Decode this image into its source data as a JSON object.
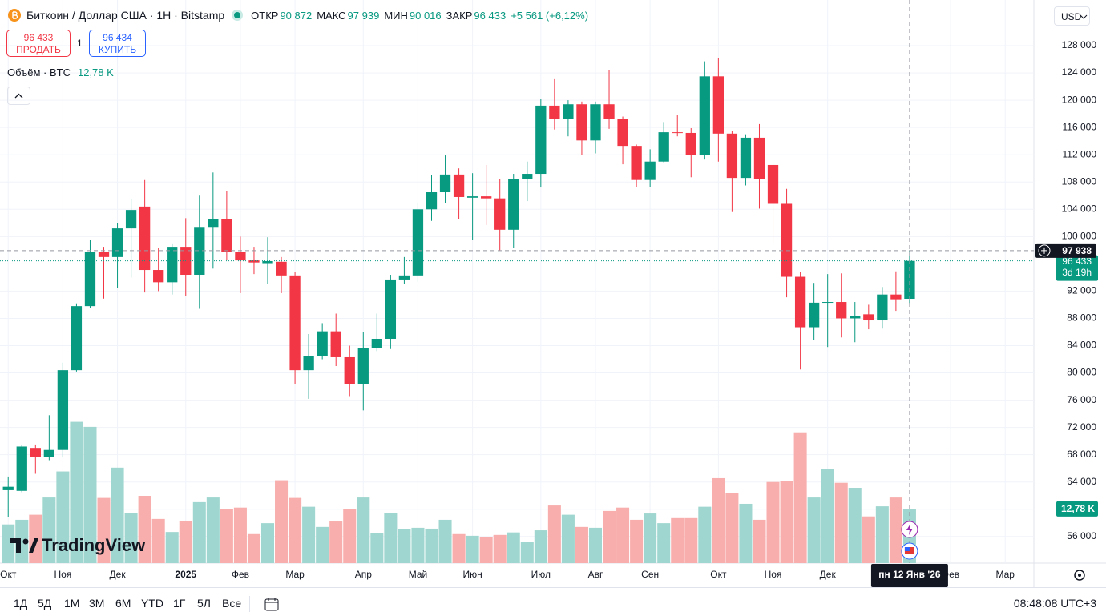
{
  "header": {
    "title": "Биткоин / Доллар США · 1Н · Bitstamp",
    "open_label": "ОТКР",
    "open": "90 872",
    "high_label": "МАКС",
    "high": "97 939",
    "low_label": "МИН",
    "low": "90 016",
    "close_label": "ЗАКР",
    "close": "96 433",
    "change": "+5 561 (+6,12%)"
  },
  "trade": {
    "sell_price": "96 433",
    "sell": "ПРОДАТЬ",
    "spread": "1",
    "buy_price": "96 434",
    "buy": "КУПИТЬ"
  },
  "currency": "USD",
  "logo": "TradingView",
  "chart_data": {
    "type": "candlestick",
    "volume_title": "Объём · BTC",
    "up_color": "#089981",
    "down_color": "#f23645",
    "volume_up_color": "#9fd6cf",
    "volume_down_color": "#f8aeac",
    "open": [
      62800,
      62700,
      69000,
      67700,
      68700,
      80400,
      89800,
      97800,
      97000,
      101200,
      104400,
      95100,
      93300,
      98500,
      94400,
      101300,
      102600,
      97700,
      96500,
      96100,
      96300,
      94300,
      80400,
      82500,
      86100,
      82300,
      78400,
      83700,
      85000,
      93700,
      94300,
      104000,
      106500,
      109100,
      105700,
      105900,
      105600,
      101000,
      108400,
      109200,
      119200,
      117300,
      119400,
      114100,
      119400,
      117300,
      113300,
      108300,
      111000,
      115300,
      115200,
      112000,
      123500,
      115100,
      108600,
      114500,
      110500,
      104800,
      94100,
      86700,
      90300,
      90400,
      88000,
      88600,
      87700,
      91500,
      90872
    ],
    "high": [
      64800,
      69500,
      69500,
      73800,
      81500,
      90200,
      99500,
      98500,
      102000,
      105500,
      108300,
      98300,
      99000,
      102700,
      106000,
      109400,
      106700,
      100000,
      98500,
      99900,
      97000,
      94800,
      85700,
      87300,
      88700,
      84000,
      86000,
      88700,
      94400,
      97000,
      104900,
      109000,
      111900,
      110000,
      109300,
      110500,
      108400,
      109200,
      111000,
      120200,
      123200,
      120000,
      119800,
      119800,
      124400,
      117600,
      113500,
      112800,
      116800,
      117800,
      115900,
      125700,
      126200,
      115500,
      115000,
      116500,
      110800,
      107000,
      94800,
      93200,
      94500,
      94600,
      90400,
      90000,
      92600,
      94900,
      97939
    ],
    "low": [
      58900,
      62500,
      65200,
      67200,
      67600,
      80200,
      89500,
      90900,
      92400,
      94000,
      91800,
      92000,
      91500,
      91300,
      89400,
      95300,
      96600,
      91700,
      94500,
      93000,
      91700,
      78400,
      76200,
      82000,
      81000,
      76600,
      74500,
      83200,
      83500,
      93000,
      93400,
      102300,
      104900,
      102600,
      99500,
      101700,
      98000,
      98300,
      105200,
      107200,
      115700,
      114700,
      112000,
      112200,
      115800,
      110600,
      107300,
      107300,
      110900,
      114700,
      108700,
      111300,
      111000,
      103600,
      107500,
      104100,
      98900,
      91100,
      80500,
      84800,
      83800,
      85200,
      84500,
      86400,
      86500,
      89100,
      90016
    ],
    "close": [
      63300,
      69200,
      67700,
      68700,
      80400,
      89800,
      97800,
      97000,
      101200,
      103900,
      95100,
      93300,
      98500,
      94400,
      101300,
      102600,
      97700,
      96500,
      96200,
      96400,
      94300,
      80400,
      82500,
      86100,
      82300,
      78400,
      83700,
      85000,
      93700,
      94300,
      104000,
      106500,
      109100,
      105800,
      105900,
      105600,
      101000,
      108400,
      109200,
      119200,
      117300,
      119400,
      114100,
      119400,
      117300,
      113300,
      108300,
      111000,
      115300,
      115200,
      112000,
      123500,
      115100,
      108600,
      114500,
      108400,
      104800,
      94100,
      86700,
      90300,
      90400,
      88000,
      88400,
      87700,
      91500,
      90800,
      96433
    ],
    "volume": [
      9.2,
      10.3,
      11.5,
      15.6,
      21.8,
      33.6,
      32.4,
      15.5,
      22.7,
      12.0,
      16.0,
      10.5,
      7.4,
      10.1,
      14.5,
      15.6,
      12.8,
      13.2,
      6.9,
      9.5,
      19.7,
      15.5,
      13.4,
      8.6,
      9.9,
      12.8,
      15.6,
      7.1,
      12.0,
      8.0,
      8.4,
      8.2,
      10.3,
      6.9,
      6.5,
      6.1,
      6.7,
      7.3,
      5.0,
      7.8,
      13.7,
      11.5,
      8.6,
      8.4,
      12.4,
      13.2,
      10.3,
      11.8,
      9.5,
      10.7,
      10.7,
      13.4,
      20.2,
      16.6,
      14.1,
      10.3,
      19.3,
      19.5,
      31.1,
      15.6,
      22.3,
      19.1,
      17.9,
      11.1,
      13.5,
      15.6,
      12.78
    ],
    "volume_last_label": "12,78 K",
    "volume_ylim": [
      0,
      40
    ],
    "xlim": [
      -0.6,
      75.1
    ],
    "xticks": [
      {
        "value": 0,
        "label": "Окт"
      },
      {
        "value": 4,
        "label": "Ноя"
      },
      {
        "value": 8,
        "label": "Дек"
      },
      {
        "value": 13,
        "label": "2025"
      },
      {
        "value": 17,
        "label": "Фев"
      },
      {
        "value": 21,
        "label": "Мар"
      },
      {
        "value": 26,
        "label": "Апр"
      },
      {
        "value": 30,
        "label": "Май"
      },
      {
        "value": 34,
        "label": "Июн"
      },
      {
        "value": 39,
        "label": "Июл"
      },
      {
        "value": 43,
        "label": "Авг"
      },
      {
        "value": 47,
        "label": "Сен"
      },
      {
        "value": 52,
        "label": "Окт"
      },
      {
        "value": 56,
        "label": "Ноя"
      },
      {
        "value": 60,
        "label": "Дек"
      },
      {
        "value": 69,
        "label": "Фев"
      },
      {
        "value": 73,
        "label": "Мар"
      }
    ],
    "ylim": [
      52100,
      134700
    ],
    "yticks": [
      {
        "value": 56000,
        "label": "56 000"
      },
      {
        "value": 60000,
        "label": "60 000"
      },
      {
        "value": 64000,
        "label": "64 000"
      },
      {
        "value": 68000,
        "label": "68 000"
      },
      {
        "value": 72000,
        "label": "72 000"
      },
      {
        "value": 76000,
        "label": "76 000"
      },
      {
        "value": 80000,
        "label": "80 000"
      },
      {
        "value": 84000,
        "label": "84 000"
      },
      {
        "value": 88000,
        "label": "88 000"
      },
      {
        "value": 92000,
        "label": "92 000"
      },
      {
        "value": 96000,
        "label": "96 000"
      },
      {
        "value": 100000,
        "label": "100 000"
      },
      {
        "value": 104000,
        "label": "104 000"
      },
      {
        "value": 108000,
        "label": "108 000"
      },
      {
        "value": 112000,
        "label": "112 000"
      },
      {
        "value": 116000,
        "label": "116 000"
      },
      {
        "value": 120000,
        "label": "120 000"
      },
      {
        "value": 124000,
        "label": "124 000"
      },
      {
        "value": 128000,
        "label": "128 000"
      }
    ],
    "grid": true,
    "crosshair": {
      "value": 97938,
      "label": "97 938",
      "date": "пн 12 Янв '26"
    },
    "last_price": {
      "value": 96433,
      "label": "96 433",
      "countdown": "3d 19h"
    }
  },
  "toolbar": {
    "ranges": [
      "1Д",
      "5Д",
      "1М",
      "3М",
      "6М",
      "YTD",
      "1Г",
      "5Л",
      "Все"
    ],
    "clock": "08:48:08 UTC+3"
  }
}
